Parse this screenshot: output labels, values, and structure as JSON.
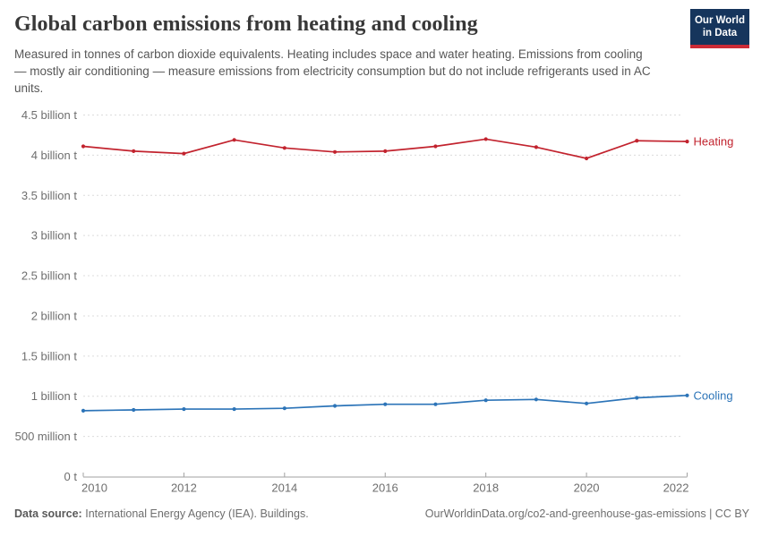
{
  "header": {
    "title": "Global carbon emissions from heating and cooling",
    "subtitle": "Measured in tonnes of carbon dioxide equivalents. Heating includes space and water heating. Emissions from cooling — mostly air conditioning — measure emissions from electricity consumption but do not include refrigerants used in AC units.",
    "logo": {
      "line1": "Our World",
      "line2": "in Data"
    }
  },
  "chart_data": {
    "type": "line",
    "x": [
      2010,
      2011,
      2012,
      2013,
      2014,
      2015,
      2016,
      2017,
      2018,
      2019,
      2020,
      2021,
      2022
    ],
    "series": [
      {
        "name": "Heating",
        "color": "#C2232E",
        "values": [
          4.11,
          4.05,
          4.02,
          4.19,
          4.09,
          4.04,
          4.05,
          4.11,
          4.2,
          4.1,
          3.96,
          4.18,
          4.17
        ]
      },
      {
        "name": "Cooling",
        "color": "#2C74B8",
        "values": [
          0.82,
          0.83,
          0.84,
          0.84,
          0.85,
          0.88,
          0.9,
          0.9,
          0.95,
          0.96,
          0.91,
          0.98,
          1.01
        ]
      }
    ],
    "ylim": [
      0,
      4.5
    ],
    "ytick_step": 0.5,
    "ytick_labels": [
      "0 t",
      "500 million t",
      "1 billion t",
      "1.5 billion t",
      "2 billion t",
      "2.5 billion t",
      "3 billion t",
      "3.5 billion t",
      "4 billion t",
      "4.5 billion t"
    ],
    "xtick_labels": [
      "2010",
      "2012",
      "2014",
      "2016",
      "2018",
      "2020",
      "2022"
    ],
    "grid": "horizontal-dashed",
    "legend_position": "right-of-line-end",
    "xlabel": "",
    "ylabel": ""
  },
  "footer": {
    "source_label": "Data source:",
    "source_text": "International Energy Agency (IEA). Buildings.",
    "right_text": "OurWorldinData.org/co2-and-greenhouse-gas-emissions | CC BY"
  }
}
